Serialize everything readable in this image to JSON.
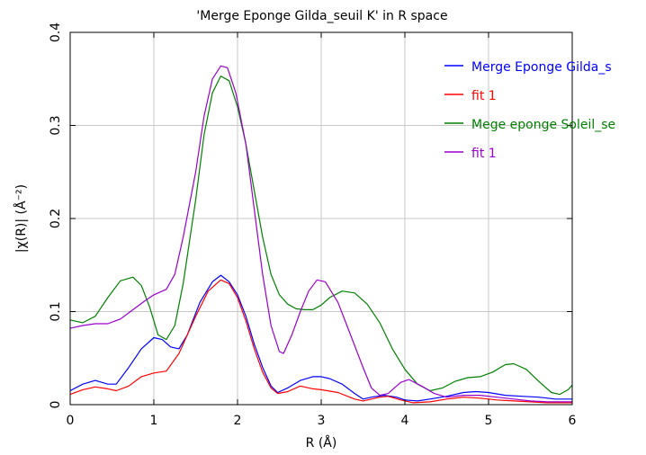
{
  "chart_data": {
    "type": "line",
    "title": "'Merge Eponge Gilda_seuil K' in R space",
    "xlabel": "R (Å)",
    "ylabel": "|χ(R)| (Å⁻²)",
    "xlim": [
      0,
      6
    ],
    "ylim": [
      0,
      0.4
    ],
    "x_ticks": [
      "0",
      "1",
      "2",
      "3",
      "4",
      "5",
      "6"
    ],
    "y_ticks": [
      "0",
      "0.1",
      "0.2",
      "0.3",
      "0.4"
    ],
    "grid": true,
    "legend_position": "top-right",
    "series": [
      {
        "name": "Merge Eponge Gilda_s",
        "color": "#0000ff",
        "points": [
          [
            0,
            0.015
          ],
          [
            0.15,
            0.022
          ],
          [
            0.3,
            0.026
          ],
          [
            0.45,
            0.022
          ],
          [
            0.55,
            0.022
          ],
          [
            0.7,
            0.04
          ],
          [
            0.85,
            0.06
          ],
          [
            1.0,
            0.072
          ],
          [
            1.1,
            0.07
          ],
          [
            1.2,
            0.062
          ],
          [
            1.3,
            0.06
          ],
          [
            1.4,
            0.075
          ],
          [
            1.55,
            0.11
          ],
          [
            1.7,
            0.132
          ],
          [
            1.8,
            0.139
          ],
          [
            1.9,
            0.132
          ],
          [
            2.0,
            0.118
          ],
          [
            2.1,
            0.095
          ],
          [
            2.2,
            0.065
          ],
          [
            2.3,
            0.04
          ],
          [
            2.4,
            0.02
          ],
          [
            2.48,
            0.013
          ],
          [
            2.6,
            0.018
          ],
          [
            2.75,
            0.026
          ],
          [
            2.9,
            0.03
          ],
          [
            3.0,
            0.03
          ],
          [
            3.1,
            0.028
          ],
          [
            3.25,
            0.022
          ],
          [
            3.4,
            0.012
          ],
          [
            3.5,
            0.006
          ],
          [
            3.6,
            0.008
          ],
          [
            3.75,
            0.01
          ],
          [
            3.9,
            0.008
          ],
          [
            4.0,
            0.005
          ],
          [
            4.15,
            0.004
          ],
          [
            4.3,
            0.006
          ],
          [
            4.5,
            0.009
          ],
          [
            4.7,
            0.013
          ],
          [
            4.85,
            0.014
          ],
          [
            5.0,
            0.013
          ],
          [
            5.2,
            0.01
          ],
          [
            5.4,
            0.009
          ],
          [
            5.6,
            0.008
          ],
          [
            5.8,
            0.006
          ],
          [
            6.0,
            0.006
          ]
        ]
      },
      {
        "name": "fit 1",
        "color": "#ff0000",
        "points": [
          [
            0,
            0.011
          ],
          [
            0.15,
            0.016
          ],
          [
            0.3,
            0.019
          ],
          [
            0.45,
            0.017
          ],
          [
            0.55,
            0.015
          ],
          [
            0.7,
            0.02
          ],
          [
            0.85,
            0.03
          ],
          [
            1.0,
            0.034
          ],
          [
            1.15,
            0.036
          ],
          [
            1.3,
            0.055
          ],
          [
            1.5,
            0.095
          ],
          [
            1.65,
            0.122
          ],
          [
            1.8,
            0.134
          ],
          [
            1.9,
            0.13
          ],
          [
            2.0,
            0.115
          ],
          [
            2.1,
            0.09
          ],
          [
            2.2,
            0.06
          ],
          [
            2.3,
            0.035
          ],
          [
            2.4,
            0.018
          ],
          [
            2.48,
            0.012
          ],
          [
            2.6,
            0.014
          ],
          [
            2.75,
            0.02
          ],
          [
            2.9,
            0.017
          ],
          [
            3.0,
            0.016
          ],
          [
            3.2,
            0.013
          ],
          [
            3.4,
            0.006
          ],
          [
            3.5,
            0.004
          ],
          [
            3.7,
            0.008
          ],
          [
            3.8,
            0.009
          ],
          [
            3.95,
            0.005
          ],
          [
            4.1,
            0.002
          ],
          [
            4.3,
            0.003
          ],
          [
            4.5,
            0.006
          ],
          [
            4.7,
            0.008
          ],
          [
            4.9,
            0.007
          ],
          [
            5.1,
            0.005
          ],
          [
            5.3,
            0.004
          ],
          [
            5.5,
            0.003
          ],
          [
            5.7,
            0.002
          ],
          [
            6.0,
            0.002
          ]
        ]
      },
      {
        "name": "Mege eponge Soleil_se",
        "color": "#008000",
        "points": [
          [
            0,
            0.091
          ],
          [
            0.15,
            0.088
          ],
          [
            0.3,
            0.095
          ],
          [
            0.45,
            0.115
          ],
          [
            0.6,
            0.133
          ],
          [
            0.75,
            0.137
          ],
          [
            0.85,
            0.128
          ],
          [
            0.95,
            0.105
          ],
          [
            1.05,
            0.075
          ],
          [
            1.15,
            0.07
          ],
          [
            1.25,
            0.085
          ],
          [
            1.35,
            0.13
          ],
          [
            1.5,
            0.22
          ],
          [
            1.6,
            0.29
          ],
          [
            1.7,
            0.335
          ],
          [
            1.8,
            0.353
          ],
          [
            1.9,
            0.348
          ],
          [
            2.0,
            0.32
          ],
          [
            2.1,
            0.28
          ],
          [
            2.2,
            0.23
          ],
          [
            2.3,
            0.18
          ],
          [
            2.4,
            0.14
          ],
          [
            2.5,
            0.118
          ],
          [
            2.6,
            0.108
          ],
          [
            2.7,
            0.103
          ],
          [
            2.8,
            0.102
          ],
          [
            2.9,
            0.102
          ],
          [
            3.0,
            0.107
          ],
          [
            3.1,
            0.115
          ],
          [
            3.25,
            0.122
          ],
          [
            3.4,
            0.12
          ],
          [
            3.55,
            0.108
          ],
          [
            3.7,
            0.088
          ],
          [
            3.85,
            0.06
          ],
          [
            4.0,
            0.038
          ],
          [
            4.15,
            0.022
          ],
          [
            4.3,
            0.015
          ],
          [
            4.45,
            0.018
          ],
          [
            4.6,
            0.025
          ],
          [
            4.75,
            0.029
          ],
          [
            4.9,
            0.03
          ],
          [
            5.05,
            0.035
          ],
          [
            5.2,
            0.043
          ],
          [
            5.3,
            0.044
          ],
          [
            5.45,
            0.038
          ],
          [
            5.6,
            0.025
          ],
          [
            5.75,
            0.013
          ],
          [
            5.85,
            0.011
          ],
          [
            5.95,
            0.016
          ],
          [
            6.0,
            0.021
          ]
        ]
      },
      {
        "name": "fit 1",
        "color": "#9900cc",
        "points": [
          [
            0,
            0.082
          ],
          [
            0.15,
            0.085
          ],
          [
            0.3,
            0.087
          ],
          [
            0.45,
            0.087
          ],
          [
            0.6,
            0.092
          ],
          [
            0.75,
            0.102
          ],
          [
            0.9,
            0.112
          ],
          [
            1.0,
            0.118
          ],
          [
            1.15,
            0.124
          ],
          [
            1.25,
            0.14
          ],
          [
            1.35,
            0.18
          ],
          [
            1.5,
            0.25
          ],
          [
            1.6,
            0.31
          ],
          [
            1.7,
            0.35
          ],
          [
            1.8,
            0.364
          ],
          [
            1.88,
            0.362
          ],
          [
            1.98,
            0.335
          ],
          [
            2.1,
            0.28
          ],
          [
            2.2,
            0.21
          ],
          [
            2.3,
            0.14
          ],
          [
            2.4,
            0.085
          ],
          [
            2.5,
            0.057
          ],
          [
            2.55,
            0.055
          ],
          [
            2.65,
            0.075
          ],
          [
            2.75,
            0.1
          ],
          [
            2.85,
            0.122
          ],
          [
            2.95,
            0.134
          ],
          [
            3.05,
            0.132
          ],
          [
            3.2,
            0.11
          ],
          [
            3.35,
            0.075
          ],
          [
            3.5,
            0.04
          ],
          [
            3.6,
            0.018
          ],
          [
            3.7,
            0.01
          ],
          [
            3.8,
            0.012
          ],
          [
            3.95,
            0.024
          ],
          [
            4.05,
            0.027
          ],
          [
            4.2,
            0.02
          ],
          [
            4.35,
            0.012
          ],
          [
            4.5,
            0.008
          ],
          [
            4.7,
            0.01
          ],
          [
            4.9,
            0.01
          ],
          [
            5.1,
            0.008
          ],
          [
            5.3,
            0.006
          ],
          [
            5.5,
            0.004
          ],
          [
            5.7,
            0.003
          ],
          [
            6.0,
            0.003
          ]
        ]
      }
    ]
  }
}
